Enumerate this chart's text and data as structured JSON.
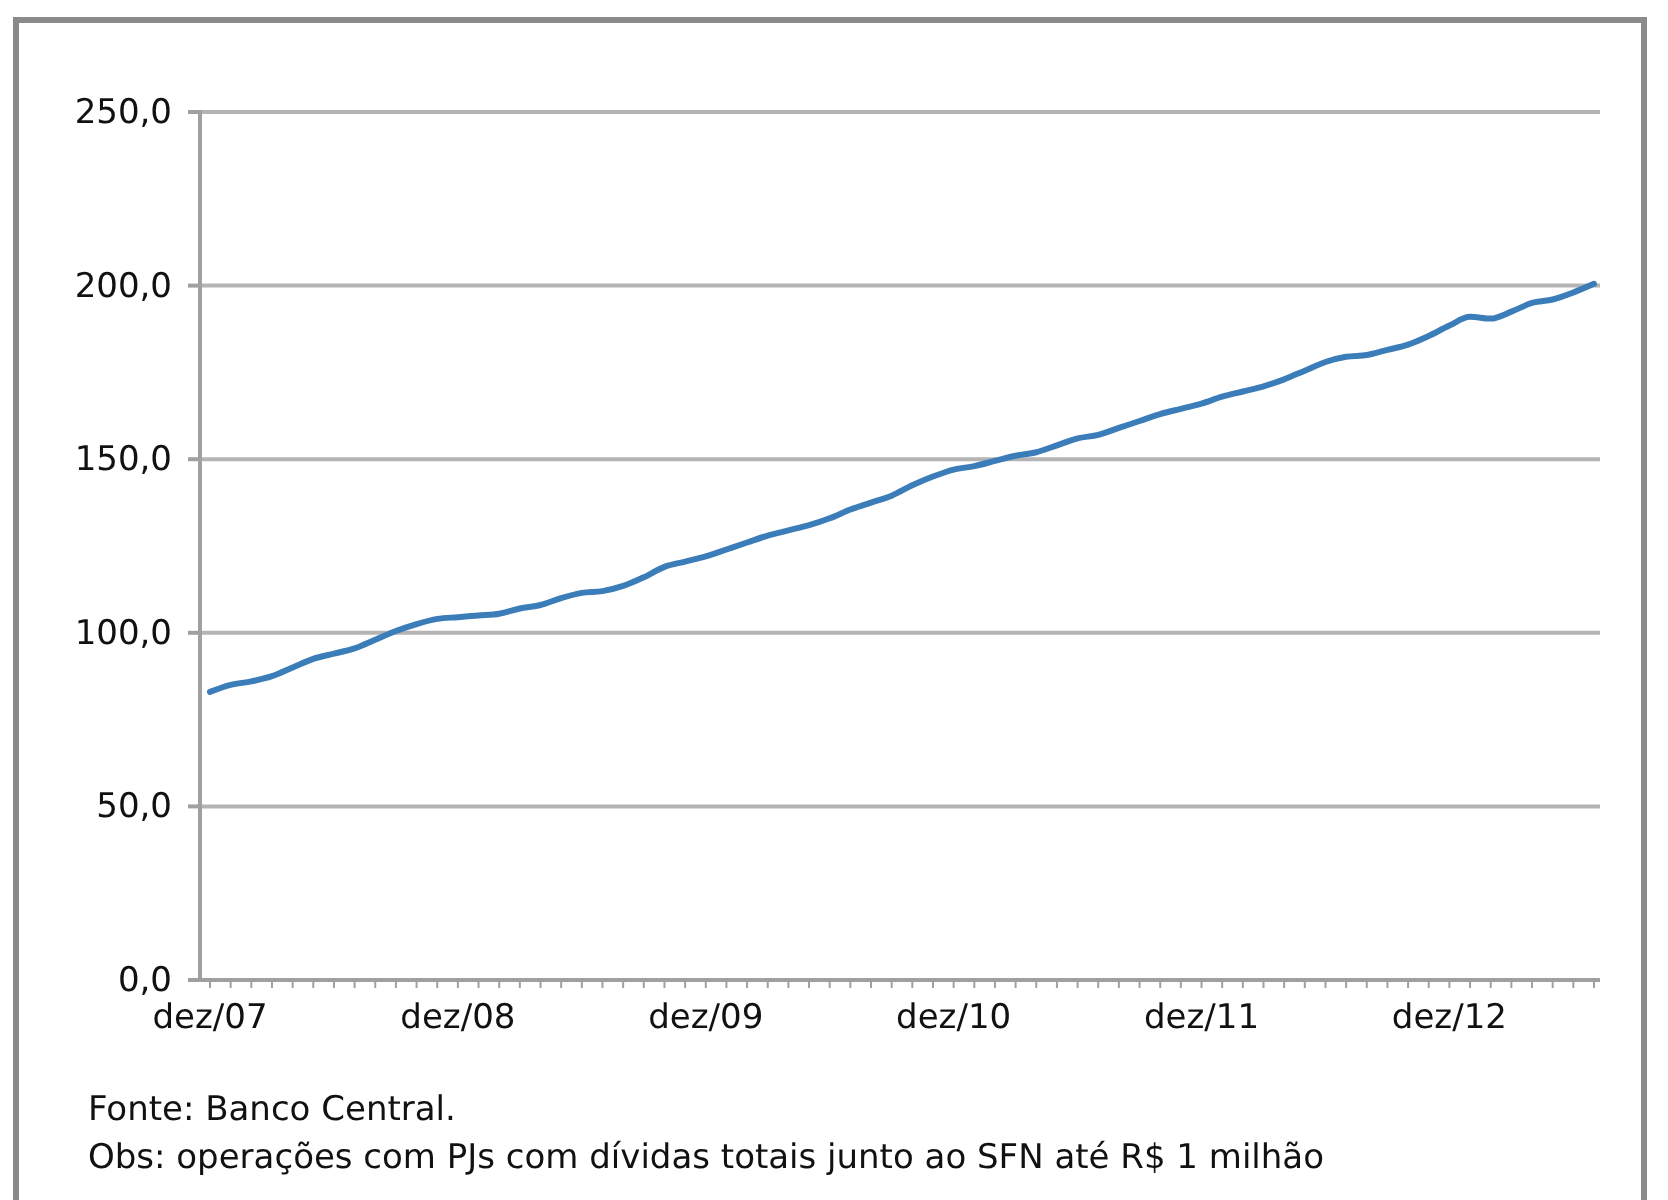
{
  "chart_data": {
    "type": "line",
    "categories": [
      "dez/07",
      null,
      null,
      null,
      null,
      null,
      null,
      null,
      null,
      null,
      null,
      null,
      "dez/08",
      null,
      null,
      null,
      null,
      null,
      null,
      null,
      null,
      null,
      null,
      null,
      "dez/09",
      null,
      null,
      null,
      null,
      null,
      null,
      null,
      null,
      null,
      null,
      null,
      "dez/10",
      null,
      null,
      null,
      null,
      null,
      null,
      null,
      null,
      null,
      null,
      null,
      "dez/11",
      null,
      null,
      null,
      null,
      null,
      null,
      null,
      null,
      null,
      null,
      null,
      "dez/12",
      null,
      null,
      null,
      null,
      null,
      null,
      null
    ],
    "values": [
      83,
      85,
      86,
      87.5,
      90,
      92.5,
      94,
      95.5,
      98,
      100.5,
      102.5,
      104,
      104.5,
      105,
      105.5,
      107,
      108,
      110,
      111.5,
      112,
      113.5,
      116,
      119,
      120.5,
      122,
      124,
      126,
      128,
      129.5,
      131,
      133,
      135.5,
      137.5,
      139.5,
      142.5,
      145,
      147,
      148,
      149.5,
      151,
      152,
      154,
      156,
      157,
      159,
      161,
      163,
      164.5,
      166,
      168,
      169.5,
      171,
      173,
      175.5,
      178,
      179.5,
      180,
      181.5,
      183,
      185.5,
      188.5,
      191,
      190.5,
      192.5,
      195,
      196,
      198,
      200.5
    ],
    "color": "#3b7db8",
    "ylim": [
      0,
      250
    ],
    "yticks": [
      {
        "value": 0,
        "label": "0,0"
      },
      {
        "value": 50,
        "label": "50,0"
      },
      {
        "value": 100,
        "label": "100,0"
      },
      {
        "value": 150,
        "label": "150,0"
      },
      {
        "value": 200,
        "label": "200,0"
      },
      {
        "value": 250,
        "label": "250,0"
      }
    ],
    "grid": "y",
    "annotations": [
      "Fonte: Banco Central.",
      "Obs: operações com PJs com dívidas totais junto ao SFN até R$ 1 milhão"
    ]
  }
}
